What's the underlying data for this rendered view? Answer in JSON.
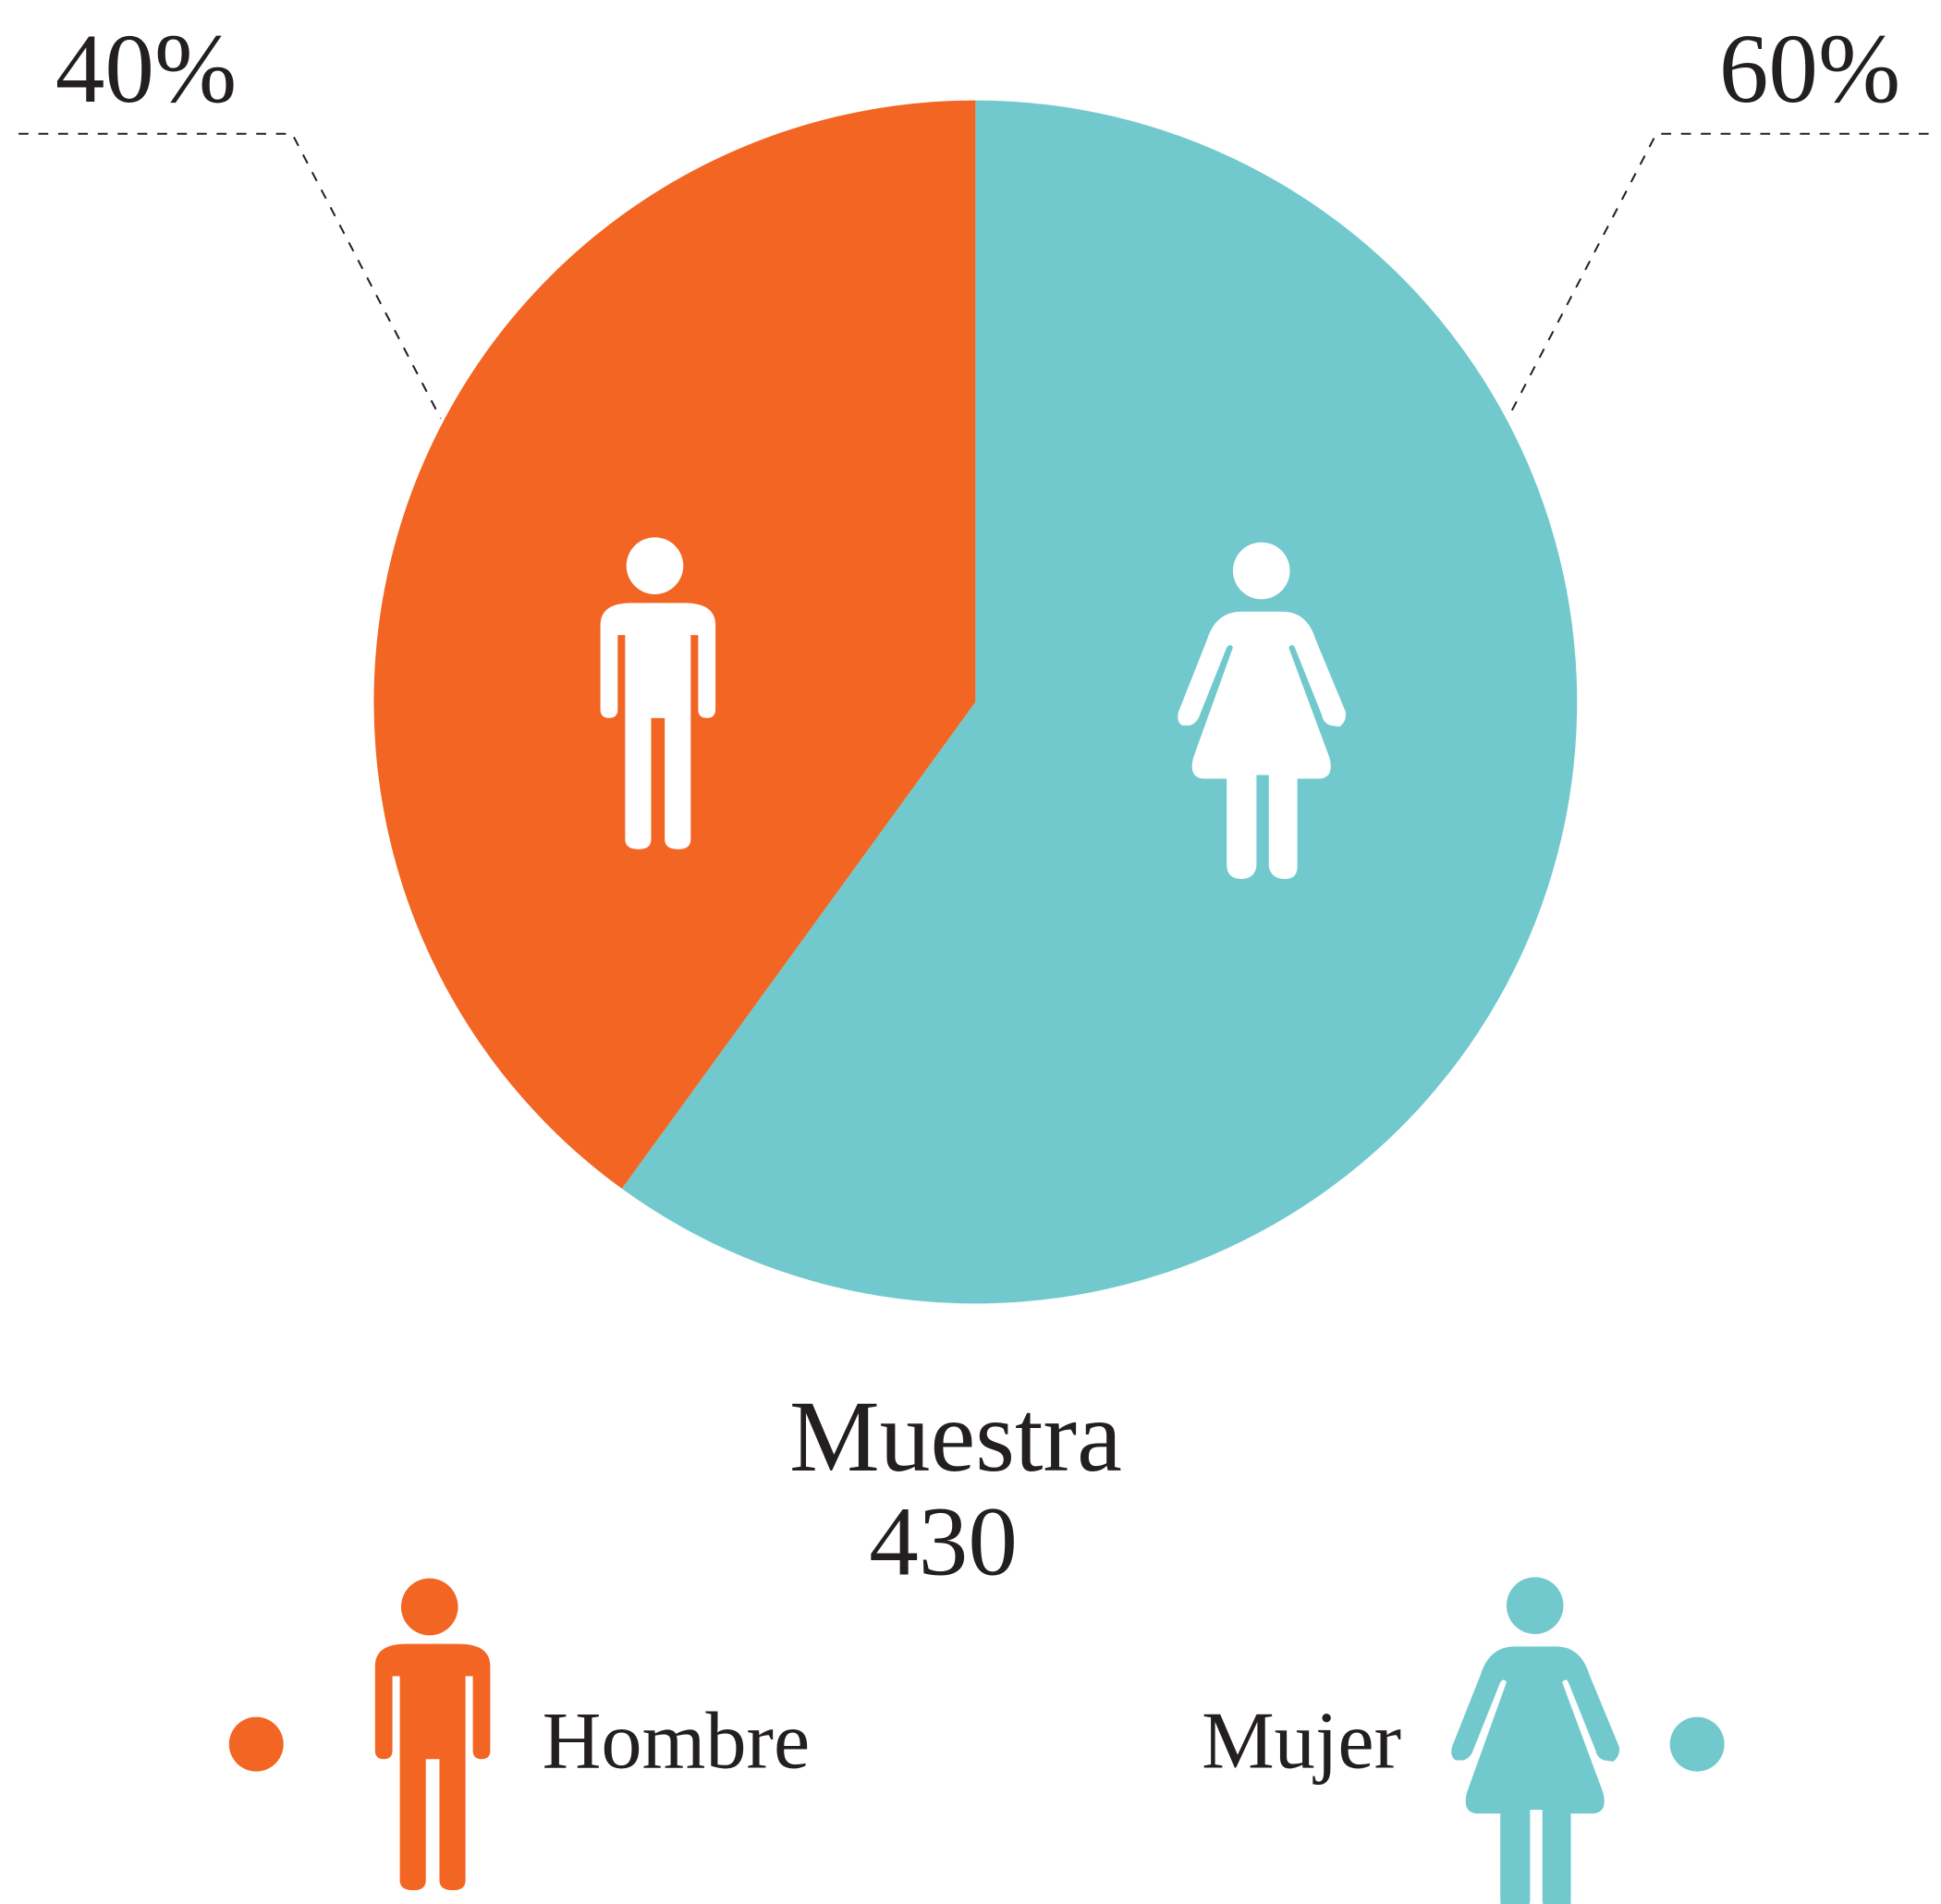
{
  "chart_data": {
    "type": "pie",
    "title": "Muestra",
    "sample_size": 430,
    "categories": [
      "Hombre",
      "Mujer"
    ],
    "values": [
      40,
      60
    ],
    "value_labels": [
      "40%",
      "60%"
    ],
    "colors": [
      "#f26522",
      "#71c9ce"
    ]
  }
}
